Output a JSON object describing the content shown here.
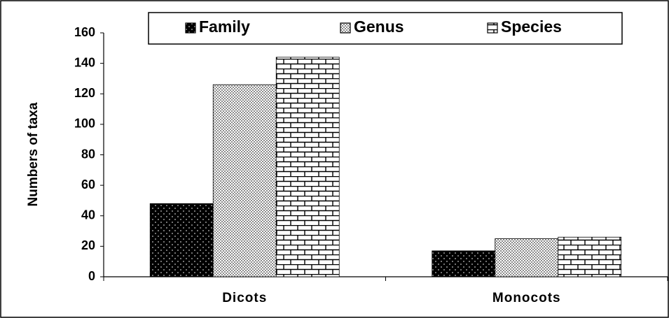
{
  "chart_data": {
    "type": "bar",
    "y_label": "Numbers  of taxa",
    "categories": [
      "Dicots",
      "Monocots"
    ],
    "series": [
      {
        "name": "Family",
        "color": "#000000",
        "values": [
          48,
          17
        ]
      },
      {
        "name": "Genus",
        "color": "#8c8c8c",
        "values": [
          126,
          25
        ]
      },
      {
        "name": "Species",
        "color": "#ffffff",
        "values": [
          144,
          26
        ]
      }
    ],
    "ylim": [
      0,
      160
    ],
    "yticks": [
      0,
      20,
      40,
      60,
      80,
      100,
      120,
      140,
      160
    ],
    "legend": "top",
    "grid": false
  }
}
